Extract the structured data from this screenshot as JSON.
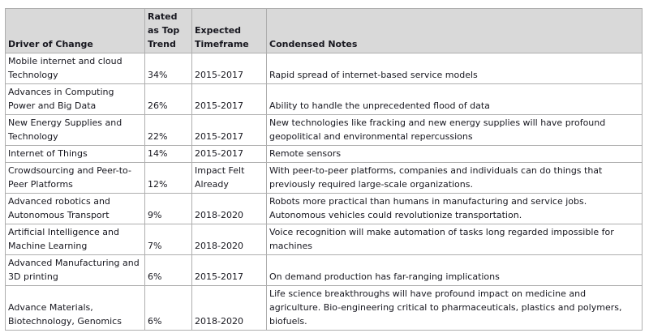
{
  "colors": {
    "header_bg": "#d9d9d9",
    "cell_border": "#aeaeae",
    "text": "#17171f",
    "page_bg": "#ffffff"
  },
  "table": {
    "columns": {
      "driver": "Driver of Change",
      "rated": "Rated as Top Trend",
      "timeframe": "Expected Timeframe",
      "notes": "Condensed Notes"
    },
    "rows": [
      {
        "driver": "Mobile internet and cloud Technology",
        "rated": "34%",
        "timeframe": "2015-2017",
        "notes": "Rapid spread of internet-based service models"
      },
      {
        "driver": "Advances in Computing Power and Big Data",
        "rated": "26%",
        "timeframe": "2015-2017",
        "notes": "Ability to handle the unprecedented flood of data"
      },
      {
        "driver": "New Energy Supplies and Technology",
        "rated": "22%",
        "timeframe": "2015-2017",
        "notes": "New technologies like fracking and new energy supplies will have profound geopolitical and environmental repercussions"
      },
      {
        "driver": "Internet of Things",
        "rated": "14%",
        "timeframe": "2015-2017",
        "notes": "Remote sensors"
      },
      {
        "driver": "Crowdsourcing and Peer-to-Peer Platforms",
        "rated": "12%",
        "timeframe": "Impact Felt Already",
        "notes": "With peer-to-peer platforms, companies and individuals can do things that previously required large-scale organizations."
      },
      {
        "driver": "Advanced robotics and Autonomous Transport",
        "rated": "9%",
        "timeframe": "2018-2020",
        "notes": "Robots more practical than humans in manufacturing and service jobs. Autonomous vehicles could revolutionize transportation."
      },
      {
        "driver": "Artificial Intelligence and Machine Learning",
        "rated": "7%",
        "timeframe": "2018-2020",
        "notes": "Voice recognition will make automation of tasks long regarded impossible for machines"
      },
      {
        "driver": "Advanced Manufacturing and 3D printing",
        "rated": "6%",
        "timeframe": "2015-2017",
        "notes": "On demand production has far-ranging implications"
      },
      {
        "driver": "Advance Materials, Biotechnology, Genomics",
        "rated": "6%",
        "timeframe": "2018-2020",
        "notes": "Life science breakthroughs will have profound impact on medicine and agriculture. Bio-engineering critical to pharmaceuticals, plastics and polymers, biofuels."
      }
    ]
  }
}
